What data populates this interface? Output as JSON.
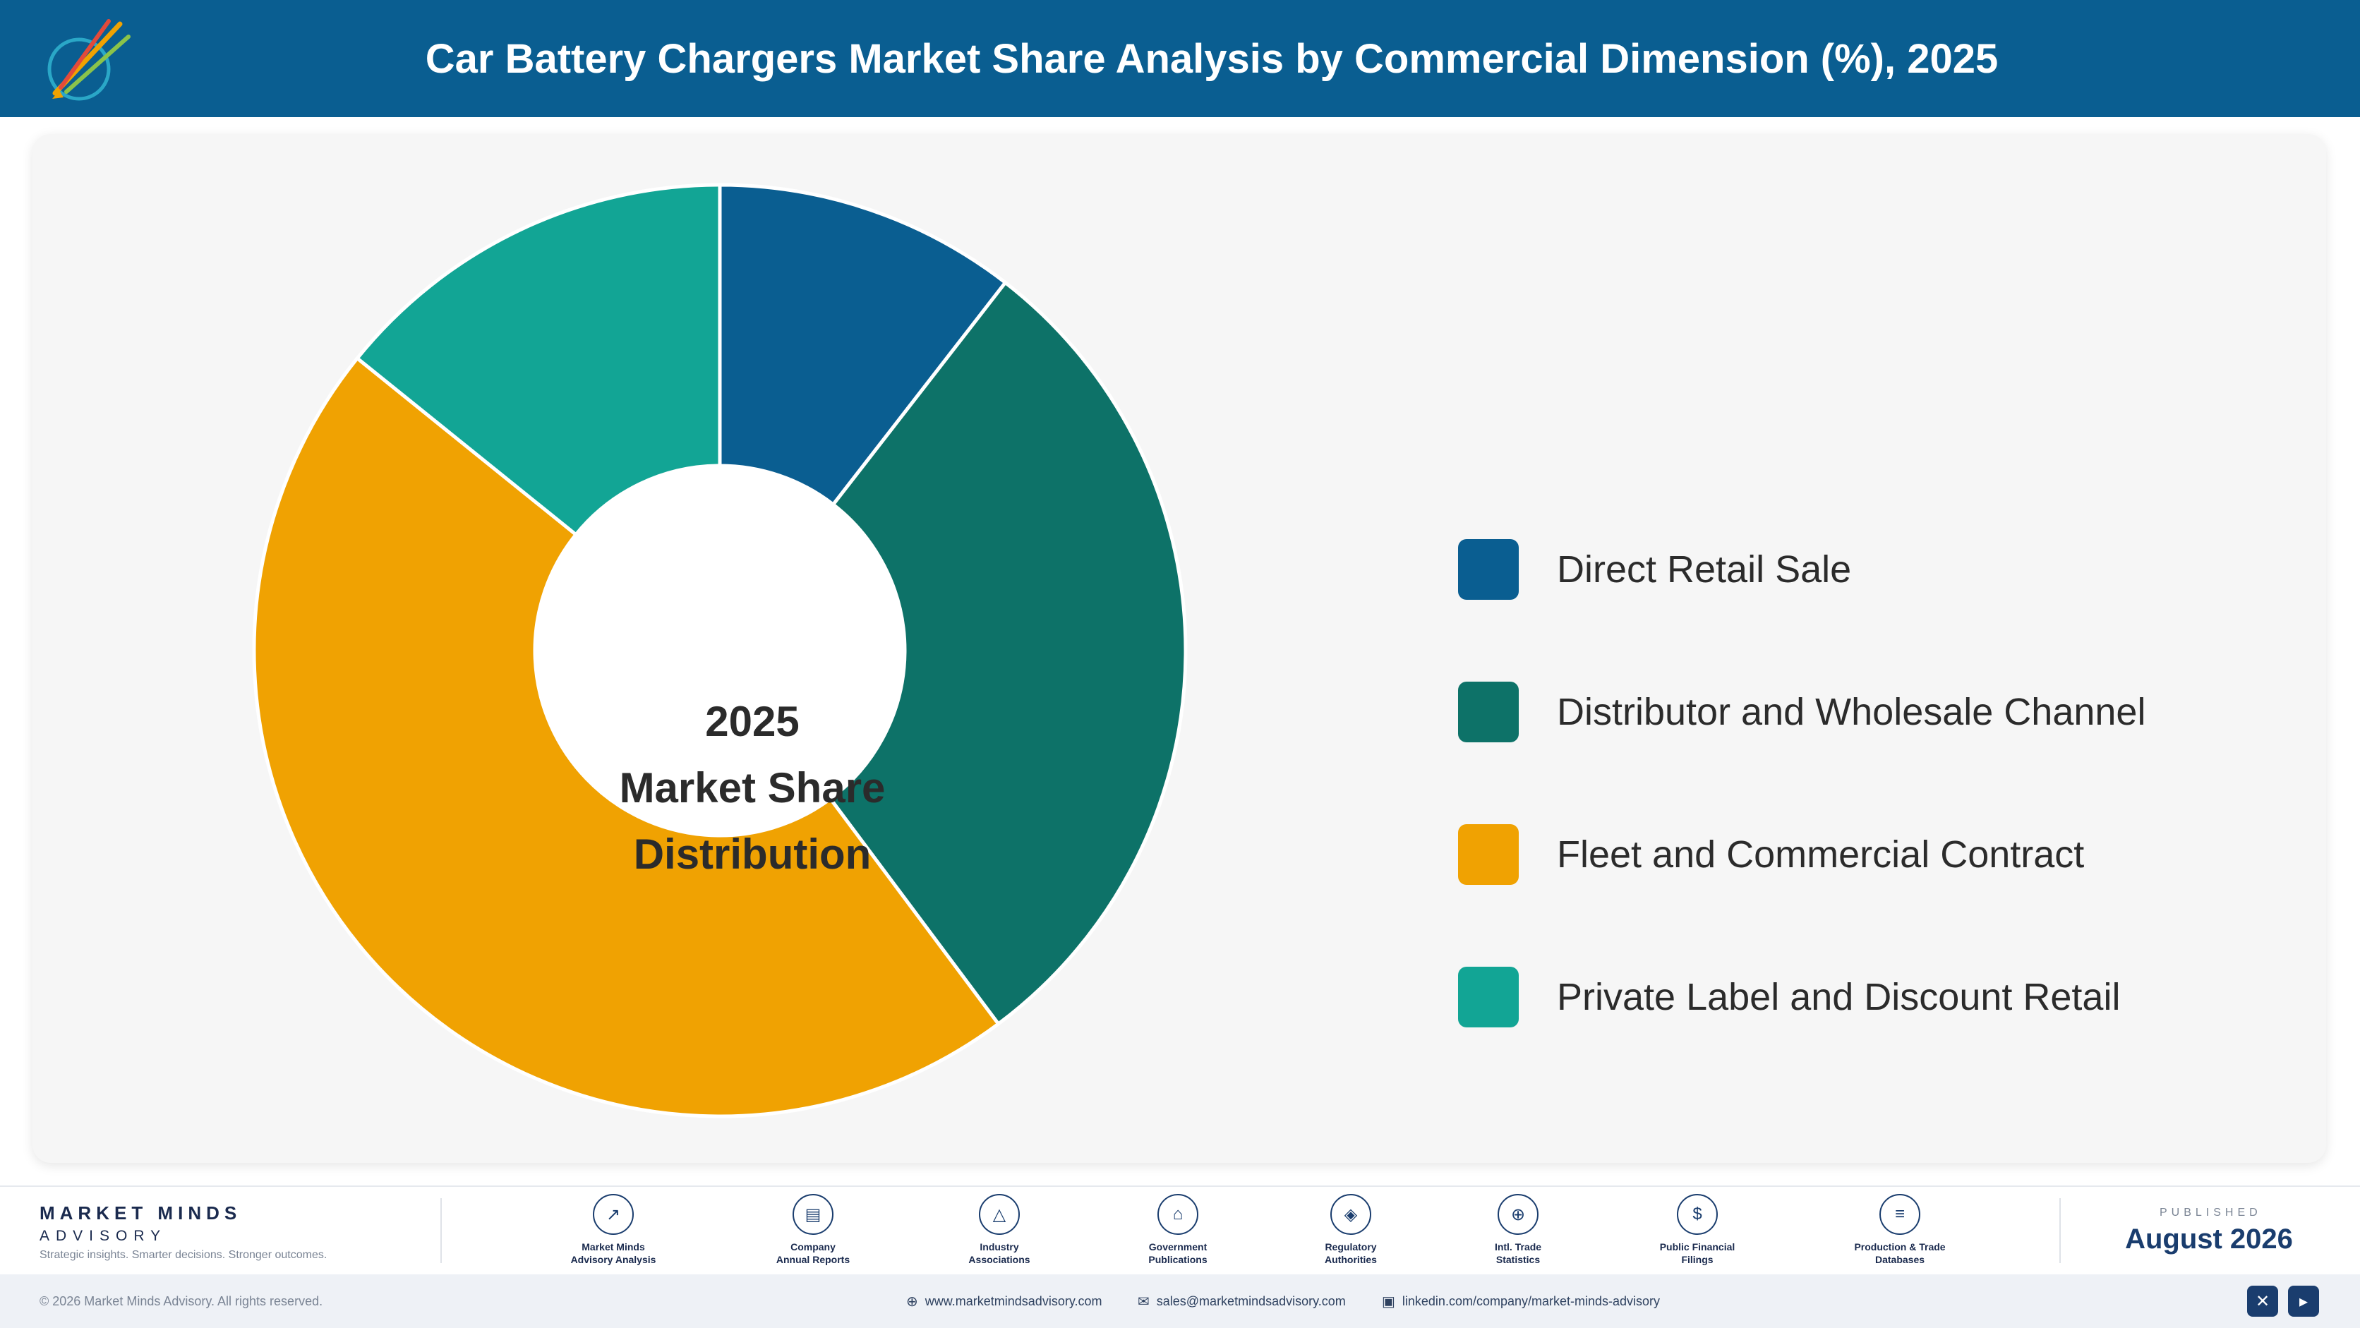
{
  "header": {
    "title": "Car Battery Chargers Market Share Analysis by Commercial Dimension (%), 2025"
  },
  "chart_data": {
    "type": "pie",
    "center_label": [
      "2025",
      "Market Share",
      "Distribution"
    ],
    "legend_position": "right",
    "categories": [
      "Direct Retail Sale",
      "Distributor and Wholesale Channel",
      "Fleet and Commercial Contract",
      "Private Label and Discount Retail"
    ],
    "values": [
      10.5,
      29.3,
      46.0,
      14.2
    ],
    "colors": [
      "#0a5e91",
      "#0d7268",
      "#f0a202",
      "#12a595"
    ]
  },
  "footer": {
    "brand_name": "MARKET MINDS",
    "brand_sub": "ADVISORY",
    "brand_tagline": "Strategic insights. Smarter decisions. Stronger outcomes.",
    "sources": [
      {
        "icon": "chart-line-icon",
        "glyph": "↗",
        "label": "Market Minds\nAdvisory Analysis"
      },
      {
        "icon": "document-icon",
        "glyph": "▤",
        "label": "Company\nAnnual Reports"
      },
      {
        "icon": "network-icon",
        "glyph": "△",
        "label": "Industry\nAssociations"
      },
      {
        "icon": "government-building-icon",
        "glyph": "⌂",
        "label": "Government\nPublications"
      },
      {
        "icon": "shield-icon",
        "glyph": "◈",
        "label": "Regulatory\nAuthorities"
      },
      {
        "icon": "globe-icon",
        "glyph": "⊕",
        "label": "Intl. Trade\nStatistics"
      },
      {
        "icon": "dollar-coin-icon",
        "glyph": "$",
        "label": "Public Financial\nFilings"
      },
      {
        "icon": "database-icon",
        "glyph": "≡",
        "label": "Production & Trade\nDatabases"
      }
    ],
    "published_label": "PUBLISHED",
    "published_date": "August 2026"
  },
  "bottom_bar": {
    "copyright": "© 2026 Market Minds Advisory. All rights reserved.",
    "website": "www.marketmindsadvisory.com",
    "email": "sales@marketmindsadvisory.com",
    "linkedin": "linkedin.com/company/market-minds-advisory"
  }
}
